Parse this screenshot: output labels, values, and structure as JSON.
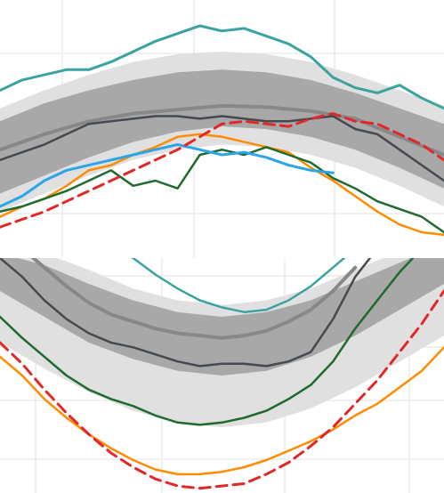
{
  "chart_data": [
    {
      "type": "line",
      "xlim": [
        0,
        100
      ],
      "ylim": [
        0,
        100
      ],
      "grid": true,
      "bands": [
        {
          "color": "#e0e0e0",
          "x": [
            0,
            10,
            20,
            30,
            40,
            50,
            60,
            70,
            80,
            90,
            100
          ],
          "upper": [
            58,
            65,
            71,
            76,
            79,
            80,
            79,
            76,
            71,
            65,
            59
          ],
          "lower": [
            18,
            25,
            32,
            38,
            42,
            44,
            43,
            40,
            35,
            28,
            20
          ]
        },
        {
          "color": "#a8a8a8",
          "x": [
            0,
            10,
            20,
            30,
            40,
            50,
            60,
            70,
            80,
            90,
            100
          ],
          "upper": [
            53,
            60,
            65,
            69,
            72,
            73,
            72,
            69,
            64,
            58,
            52
          ],
          "lower": [
            25,
            32,
            39,
            45,
            49,
            51,
            50,
            47,
            42,
            35,
            27
          ]
        }
      ],
      "series": [
        {
          "color": "#3aa3a0",
          "width": 3,
          "dash": "",
          "x": [
            0,
            5,
            10,
            15,
            20,
            25,
            30,
            35,
            40,
            45,
            50,
            55,
            60,
            65,
            70,
            75,
            80,
            85,
            90,
            95,
            100
          ],
          "y": [
            65,
            69,
            71,
            73,
            73,
            76,
            80,
            84,
            87,
            90,
            88,
            89,
            86,
            83,
            78,
            70,
            66,
            64,
            67,
            62,
            58
          ]
        },
        {
          "color": "#888888",
          "width": 4,
          "dash": "",
          "x": [
            0,
            10,
            20,
            30,
            40,
            50,
            60,
            70,
            80,
            90,
            100
          ],
          "y": [
            42,
            48,
            53,
            56,
            57.5,
            59,
            58.5,
            57,
            54,
            47,
            40
          ]
        },
        {
          "color": "#444a50",
          "width": 2.5,
          "dash": "",
          "x": [
            0,
            5,
            10,
            15,
            20,
            25,
            30,
            35,
            40,
            45,
            50,
            55,
            60,
            65,
            70,
            75,
            80,
            85,
            90,
            95,
            100
          ],
          "y": [
            38,
            41,
            44,
            48,
            52,
            53,
            54,
            55,
            55,
            54,
            55,
            54,
            53,
            53,
            54,
            55,
            50,
            48,
            42,
            36,
            30
          ]
        },
        {
          "color": "#ff8c00",
          "width": 2.5,
          "dash": "",
          "x": [
            0,
            5,
            10,
            15,
            20,
            25,
            30,
            35,
            40,
            45,
            50,
            55,
            60,
            65,
            70,
            75,
            80,
            85,
            90,
            95,
            100
          ],
          "y": [
            16,
            20,
            23,
            28,
            34,
            36,
            40,
            43,
            47,
            48,
            47,
            45,
            43,
            41,
            35,
            30,
            24,
            18,
            13,
            10,
            9
          ]
        },
        {
          "color": "#1d6b2f",
          "width": 2.5,
          "dash": "",
          "x": [
            0,
            5,
            10,
            15,
            20,
            25,
            30,
            35,
            40,
            45,
            50,
            55,
            60,
            65,
            70,
            75,
            80,
            85,
            90,
            95,
            100
          ],
          "y": [
            18,
            20,
            23,
            26,
            30,
            34,
            28,
            30,
            27,
            40,
            42,
            40,
            43,
            40,
            37,
            31,
            27,
            22,
            19,
            16,
            10
          ]
        },
        {
          "color": "#2ba5ea",
          "width": 3,
          "dash": "",
          "x": [
            0,
            5,
            10,
            15,
            20,
            25,
            30,
            35,
            40,
            45,
            50,
            55,
            60,
            65,
            70,
            75
          ],
          "y": [
            20,
            24,
            30,
            34,
            36,
            38,
            40,
            42,
            44,
            42,
            40,
            41,
            39,
            36,
            34,
            33
          ]
        },
        {
          "color": "#e02828",
          "width": 3,
          "dash": "12,7",
          "x": [
            0,
            5,
            10,
            15,
            20,
            25,
            30,
            35,
            40,
            45,
            50,
            55,
            60,
            65,
            70,
            75,
            80,
            85,
            90,
            95,
            100
          ],
          "y": [
            12,
            15,
            18,
            22,
            26,
            30,
            34,
            38,
            42,
            47,
            52,
            53,
            52,
            51,
            54,
            56,
            53,
            52,
            48,
            44,
            38
          ]
        }
      ]
    },
    {
      "type": "line",
      "xlim": [
        0,
        100
      ],
      "ylim": [
        0,
        100
      ],
      "grid": true,
      "bands": [
        {
          "color": "#e0e0e0",
          "x": [
            0,
            10,
            20,
            30,
            40,
            50,
            60,
            70,
            80,
            90,
            100
          ],
          "upper": [
            104,
            102,
            95,
            87,
            82,
            80,
            82,
            87,
            95,
            103,
            108
          ],
          "lower": [
            64,
            53,
            43,
            35,
            30,
            28,
            30,
            36,
            45,
            56,
            67
          ]
        },
        {
          "color": "#a8a8a8",
          "x": [
            0,
            10,
            20,
            30,
            40,
            50,
            60,
            70,
            80,
            90,
            100
          ],
          "upper": [
            102,
            97,
            89,
            82,
            77,
            75,
            77,
            82,
            90,
            98,
            106
          ],
          "lower": [
            86,
            75,
            64,
            57,
            52,
            50,
            52,
            58,
            67,
            78,
            89
          ]
        }
      ],
      "series": [
        {
          "color": "#3aa3a0",
          "width": 2.5,
          "dash": "",
          "x": [
            25,
            30,
            35,
            40,
            45,
            50,
            55,
            60,
            65,
            70,
            75,
            80
          ],
          "y": [
            104,
            100,
            93,
            87,
            82,
            79,
            77,
            78,
            82,
            88,
            96,
            104
          ]
        },
        {
          "color": "#888888",
          "width": 4,
          "dash": "",
          "x": [
            5,
            10,
            15,
            20,
            25,
            30,
            35,
            40,
            45,
            50,
            55,
            60,
            65,
            70,
            75,
            80
          ],
          "y": [
            104,
            96,
            88,
            81,
            76,
            73,
            70,
            68,
            67,
            66,
            67,
            69,
            73,
            78,
            86,
            96
          ]
        },
        {
          "color": "#444a50",
          "width": 2.5,
          "dash": "",
          "x": [
            0,
            5,
            10,
            15,
            20,
            25,
            30,
            35,
            40,
            45,
            50,
            55,
            60,
            65,
            70,
            75,
            80,
            85
          ],
          "y": [
            100,
            92,
            82,
            74,
            68,
            64,
            62,
            59,
            56,
            54,
            55,
            55,
            54,
            56,
            60,
            74,
            92,
            104
          ]
        },
        {
          "color": "#1d6b2f",
          "width": 2.5,
          "dash": "",
          "x": [
            0,
            5,
            10,
            15,
            20,
            25,
            30,
            35,
            40,
            45,
            50,
            55,
            60,
            65,
            70,
            75,
            80,
            85,
            90,
            95
          ],
          "y": [
            75,
            66,
            58,
            50,
            44,
            40,
            37,
            33,
            30,
            29,
            30,
            32,
            35,
            40,
            46,
            56,
            70,
            82,
            94,
            104
          ]
        },
        {
          "color": "#ff8c00",
          "width": 2.5,
          "dash": "",
          "x": [
            0,
            5,
            10,
            15,
            20,
            25,
            30,
            35,
            40,
            45,
            50,
            55,
            60,
            65,
            70,
            75,
            80,
            85,
            90,
            95,
            100
          ],
          "y": [
            58,
            50,
            40,
            32,
            25,
            19,
            14,
            10,
            8,
            8,
            9,
            11,
            14,
            18,
            22,
            27,
            33,
            38,
            45,
            52,
            62
          ]
        },
        {
          "color": "#e02828",
          "width": 3,
          "dash": "12,7",
          "x": [
            0,
            5,
            10,
            15,
            20,
            25,
            30,
            35,
            40,
            45,
            50,
            55,
            60,
            65,
            70,
            75,
            80,
            85,
            90,
            95,
            100
          ],
          "y": [
            64,
            55,
            44,
            34,
            25,
            17,
            11,
            6,
            3,
            2,
            3,
            4,
            8,
            13,
            20,
            28,
            38,
            48,
            60,
            72,
            86
          ]
        }
      ]
    }
  ]
}
